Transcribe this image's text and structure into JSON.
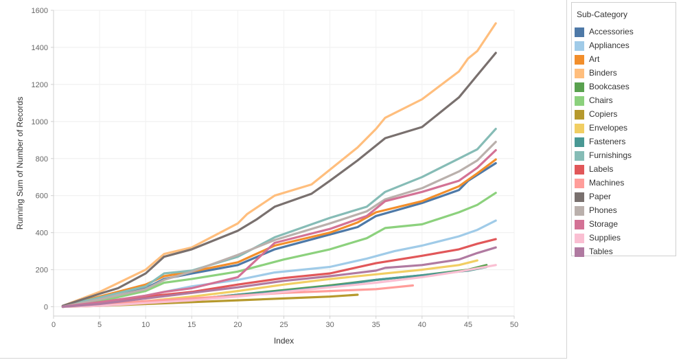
{
  "chart_data": {
    "type": "line",
    "title": "",
    "xlabel": "Index",
    "ylabel": "Running Sum of Number of Records",
    "xlim": [
      0,
      50
    ],
    "ylim": [
      -50,
      1600
    ],
    "x_ticks": [
      0,
      5,
      10,
      15,
      20,
      25,
      30,
      35,
      40,
      45,
      50
    ],
    "y_ticks": [
      0,
      200,
      400,
      600,
      800,
      1000,
      1200,
      1400,
      1600
    ],
    "grid": true,
    "legend_title": "Sub-Category",
    "legend_position": "right",
    "series": [
      {
        "name": "Accessories",
        "color": "#4e79a7",
        "x": [
          1,
          5,
          10,
          12,
          15,
          20,
          24,
          30,
          33,
          35,
          40,
          44,
          45,
          48
        ],
        "y": [
          0,
          35,
          100,
          150,
          180,
          225,
          310,
          390,
          430,
          490,
          560,
          630,
          680,
          775
        ]
      },
      {
        "name": "Appliances",
        "color": "#a0cbe8",
        "x": [
          1,
          5,
          10,
          15,
          20,
          24,
          30,
          34,
          37,
          40,
          44,
          46,
          48
        ],
        "y": [
          0,
          20,
          60,
          110,
          145,
          185,
          215,
          260,
          300,
          330,
          380,
          415,
          465
        ]
      },
      {
        "name": "Art",
        "color": "#f28e2b",
        "x": [
          1,
          5,
          10,
          12,
          15,
          20,
          24,
          30,
          33,
          35,
          40,
          44,
          46,
          48
        ],
        "y": [
          5,
          55,
          120,
          165,
          190,
          240,
          330,
          400,
          455,
          510,
          570,
          650,
          720,
          795
        ]
      },
      {
        "name": "Binders",
        "color": "#ffbe7d",
        "x": [
          1,
          5,
          10,
          12,
          15,
          20,
          21,
          24,
          28,
          33,
          35,
          36,
          40,
          44,
          45,
          46,
          48
        ],
        "y": [
          5,
          80,
          200,
          285,
          320,
          450,
          500,
          600,
          660,
          860,
          960,
          1020,
          1120,
          1270,
          1340,
          1380,
          1530
        ]
      },
      {
        "name": "Bookcases",
        "color": "#59a14f",
        "x": [
          1,
          5,
          10,
          15,
          20,
          25,
          30,
          35,
          40,
          45,
          47
        ],
        "y": [
          0,
          10,
          25,
          40,
          65,
          90,
          115,
          145,
          170,
          200,
          225
        ]
      },
      {
        "name": "Chairs",
        "color": "#8cd17d",
        "x": [
          1,
          5,
          10,
          12,
          15,
          20,
          25,
          30,
          34,
          36,
          40,
          44,
          46,
          48
        ],
        "y": [
          0,
          30,
          85,
          130,
          150,
          190,
          255,
          310,
          370,
          425,
          445,
          510,
          550,
          615
        ]
      },
      {
        "name": "Copiers",
        "color": "#b6992d",
        "x": [
          1,
          5,
          10,
          15,
          20,
          25,
          30,
          33
        ],
        "y": [
          0,
          5,
          15,
          25,
          35,
          45,
          55,
          65
        ]
      },
      {
        "name": "Envelopes",
        "color": "#f1ce63",
        "x": [
          1,
          5,
          10,
          15,
          20,
          25,
          30,
          35,
          40,
          44,
          46
        ],
        "y": [
          0,
          10,
          30,
          55,
          85,
          120,
          150,
          175,
          200,
          225,
          250
        ]
      },
      {
        "name": "Fasteners",
        "color": "#499894",
        "x": [
          1,
          5,
          10,
          15,
          20,
          25,
          30,
          35,
          40,
          45,
          47
        ],
        "y": [
          0,
          10,
          25,
          40,
          65,
          85,
          110,
          145,
          170,
          195,
          215
        ]
      },
      {
        "name": "Furnishings",
        "color": "#86bcb6",
        "x": [
          1,
          5,
          10,
          12,
          15,
          20,
          24,
          30,
          34,
          36,
          40,
          44,
          46,
          48
        ],
        "y": [
          5,
          50,
          110,
          180,
          195,
          270,
          375,
          480,
          540,
          620,
          700,
          800,
          850,
          960
        ]
      },
      {
        "name": "Labels",
        "color": "#e15759",
        "x": [
          1,
          5,
          10,
          15,
          20,
          25,
          30,
          35,
          40,
          44,
          46,
          48
        ],
        "y": [
          0,
          25,
          55,
          80,
          120,
          155,
          180,
          235,
          275,
          310,
          340,
          365
        ]
      },
      {
        "name": "Machines",
        "color": "#ff9d9a",
        "x": [
          1,
          5,
          10,
          15,
          20,
          25,
          30,
          35,
          37,
          39
        ],
        "y": [
          0,
          10,
          30,
          45,
          60,
          75,
          85,
          95,
          105,
          115
        ]
      },
      {
        "name": "Paper",
        "color": "#79706e",
        "x": [
          1,
          5,
          7,
          10,
          12,
          15,
          20,
          22,
          24,
          28,
          30,
          33,
          36,
          40,
          44,
          45,
          46,
          48
        ],
        "y": [
          5,
          70,
          100,
          180,
          270,
          310,
          410,
          470,
          540,
          610,
          680,
          790,
          910,
          970,
          1130,
          1190,
          1250,
          1370
        ]
      },
      {
        "name": "Phones",
        "color": "#bab0ac",
        "x": [
          1,
          5,
          10,
          12,
          15,
          20,
          24,
          30,
          34,
          36,
          40,
          44,
          46,
          48
        ],
        "y": [
          0,
          40,
          95,
          145,
          190,
          280,
          360,
          450,
          515,
          580,
          640,
          730,
          790,
          890
        ]
      },
      {
        "name": "Storage",
        "color": "#d37295",
        "x": [
          1,
          5,
          10,
          12,
          15,
          20,
          24,
          30,
          34,
          36,
          40,
          44,
          46,
          48
        ],
        "y": [
          0,
          25,
          60,
          80,
          100,
          160,
          345,
          420,
          490,
          570,
          620,
          680,
          750,
          845
        ]
      },
      {
        "name": "Supplies",
        "color": "#fabfd2",
        "x": [
          1,
          5,
          10,
          15,
          20,
          25,
          30,
          35,
          40,
          44,
          48
        ],
        "y": [
          0,
          5,
          20,
          35,
          55,
          80,
          105,
          130,
          160,
          190,
          225
        ]
      },
      {
        "name": "Tables",
        "color": "#b07aa1",
        "x": [
          1,
          5,
          10,
          15,
          20,
          25,
          30,
          35,
          36,
          40,
          44,
          46,
          48
        ],
        "y": [
          0,
          15,
          45,
          75,
          105,
          140,
          165,
          195,
          210,
          225,
          255,
          290,
          320
        ]
      }
    ]
  }
}
